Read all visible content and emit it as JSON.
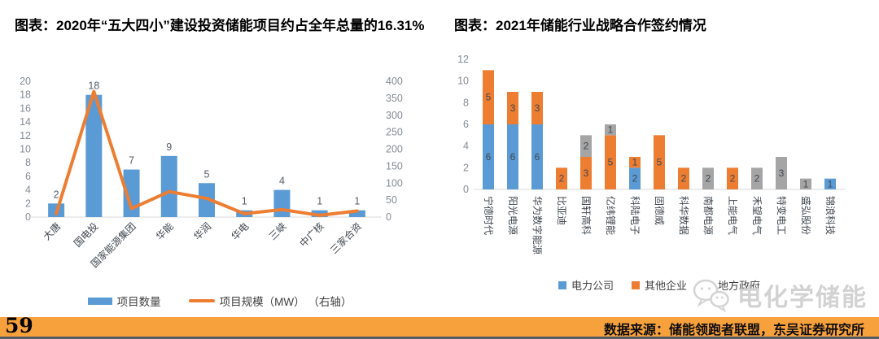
{
  "page": {
    "background": "#ffffff"
  },
  "colors": {
    "bar_blue": "#5B9BD5",
    "line_orange": "#ED7D31",
    "gray": "#A5A5A5",
    "footer_orange": "#F7A13C",
    "axis_line": "#d9d9d9"
  },
  "chart_data": [
    {
      "id": "left-chart",
      "type": "bar",
      "subtype": "bar-line combo, dual axis",
      "title": "图表：2020年“五大四小”建设投资储能项目约占全年总量的16.31%",
      "categories": [
        "大唐",
        "国电投",
        "国家能源集团",
        "华能",
        "华润",
        "华电",
        "三峡",
        "中广核",
        "三家合资"
      ],
      "series": [
        {
          "name": "项目数量",
          "type": "bar",
          "axis": "left",
          "color": "#5B9BD5",
          "values": [
            2,
            18,
            7,
            9,
            5,
            1,
            4,
            1,
            1
          ]
        },
        {
          "name": "项目规模（MW） （右轴）",
          "type": "line",
          "axis": "right",
          "color": "#ED7D31",
          "values": [
            10,
            370,
            25,
            75,
            55,
            10,
            22,
            5,
            18
          ]
        }
      ],
      "left_axis": {
        "min": 0,
        "max": 20,
        "step": 2,
        "ticks": [
          0,
          2,
          4,
          6,
          8,
          10,
          12,
          14,
          16,
          18,
          20
        ]
      },
      "right_axis": {
        "min": 0,
        "max": 400,
        "step": 50,
        "ticks": [
          0,
          50,
          100,
          150,
          200,
          250,
          300,
          350,
          400
        ]
      },
      "grid": "off",
      "legend_position": "bottom",
      "bar_labels_shown": true
    },
    {
      "id": "right-chart",
      "type": "bar",
      "subtype": "stacked vertical bars",
      "title": "图表：2021年储能行业战略合作签约情况",
      "categories": [
        "宁德时代",
        "阳光电源",
        "华为数字能源",
        "比亚迪",
        "国轩高科",
        "亿纬锂能",
        "科陆电子",
        "固德威",
        "科华数据",
        "南都电源",
        "上能电气",
        "禾望电气",
        "特变电工",
        "盛弘股份",
        "锦浪科技"
      ],
      "series": [
        {
          "name": "电力公司",
          "color": "#5B9BD5",
          "values": [
            6,
            6,
            6,
            0,
            0,
            0,
            2,
            0,
            0,
            0,
            0,
            0,
            0,
            0,
            1
          ]
        },
        {
          "name": "其他企业",
          "color": "#ED7D31",
          "values": [
            5,
            3,
            3,
            2,
            3,
            5,
            1,
            5,
            2,
            0,
            2,
            0,
            0,
            0,
            0
          ]
        },
        {
          "name": "地方政府",
          "color": "#A5A5A5",
          "values": [
            0,
            0,
            0,
            0,
            2,
            1,
            0,
            0,
            0,
            2,
            0,
            2,
            3,
            1,
            0
          ]
        }
      ],
      "y_axis": {
        "min": 0,
        "max": 12,
        "step": 2,
        "ticks": [
          0,
          2,
          4,
          6,
          8,
          10,
          12
        ]
      },
      "grid": "off",
      "legend_position": "bottom",
      "segment_labels_shown": true
    }
  ],
  "watermark": {
    "icon": "wechat-icon",
    "label": "电化学储能"
  },
  "footer": {
    "page_number": "59",
    "source_text": "数据来源：储能领跑者联盟，东吴证券研究所"
  }
}
